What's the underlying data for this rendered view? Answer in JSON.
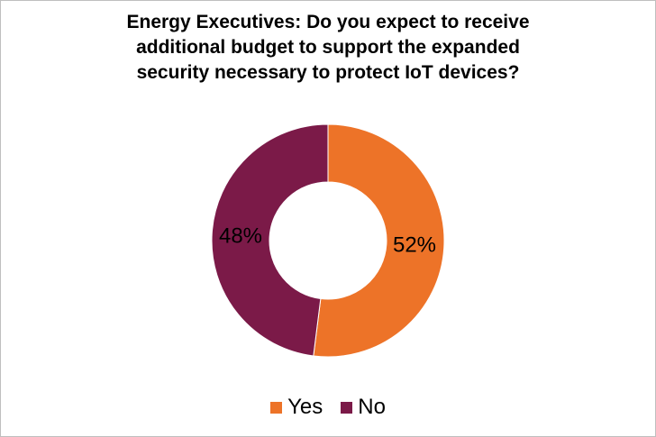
{
  "title_lines": [
    "Energy Executives: Do you expect to receive",
    "additional budget to support the expanded",
    "security necessary to protect IoT devices?"
  ],
  "chart_data": {
    "type": "pie",
    "donut": true,
    "title": "Energy Executives: Do you expect to receive additional budget to support the expanded security necessary to protect IoT devices?",
    "categories": [
      "Yes",
      "No"
    ],
    "values": [
      52,
      48
    ],
    "labels": [
      "52%",
      "48%"
    ],
    "colors": [
      "#ed7328",
      "#7b1a48"
    ],
    "legend_position": "bottom",
    "start": "top",
    "direction": "clockwise"
  },
  "legend": [
    {
      "label": "Yes",
      "color": "#ed7328"
    },
    {
      "label": "No",
      "color": "#7b1a48"
    }
  ]
}
